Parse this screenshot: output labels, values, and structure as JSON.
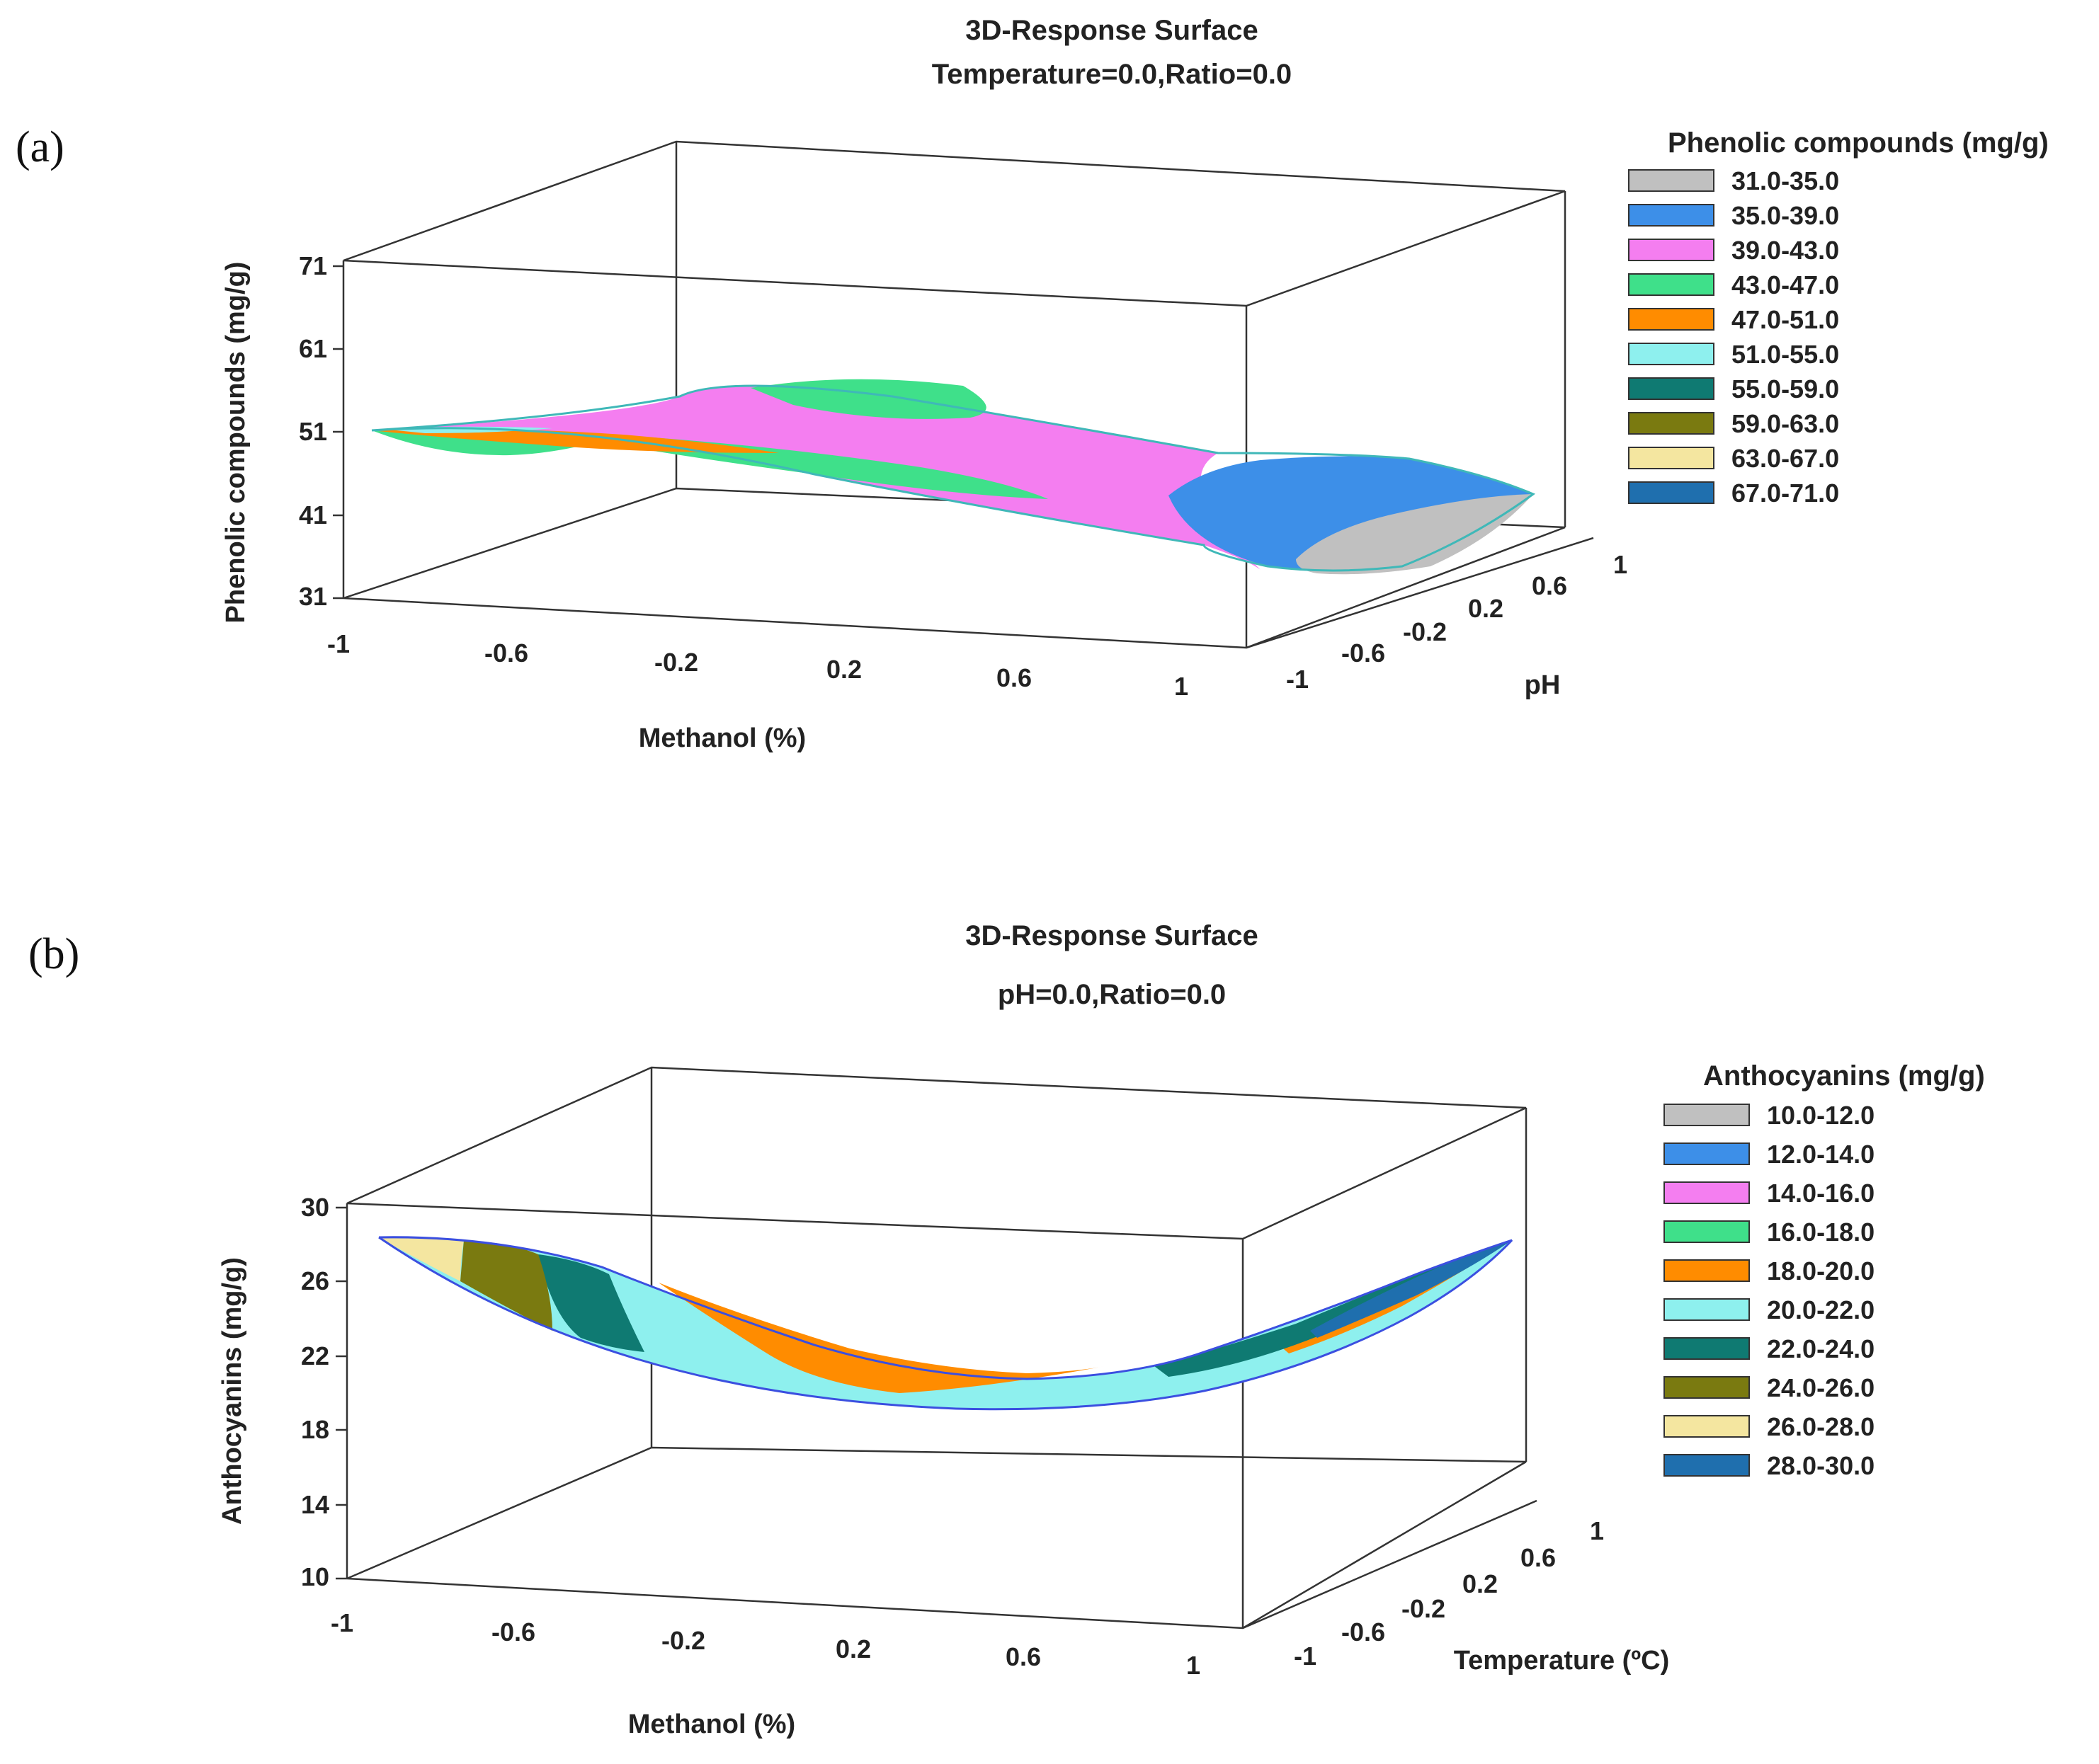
{
  "chart_data": [
    {
      "type": "surface3d",
      "panel_label": "(a)",
      "title": "3D-Response Surface",
      "subtitle": "Temperature=0.0,Ratio=0.0",
      "xlabel": "Methanol (%)",
      "ylabel": "pH",
      "zlabel": "Phenolic compounds (mg/g)",
      "x_ticks": [
        "-1",
        "-0.6",
        "-0.2",
        "0.2",
        "0.6",
        "1"
      ],
      "y_ticks": [
        "-1",
        "-0.6",
        "-0.2",
        "0.2",
        "0.6",
        "1"
      ],
      "z_ticks": [
        "31",
        "41",
        "51",
        "61",
        "71"
      ],
      "zlim": [
        31,
        71
      ],
      "legend_title": "Phenolic compounds (mg/g)",
      "legend": [
        {
          "label": "31.0-35.0",
          "color": "#c0c0c0"
        },
        {
          "label": "35.0-39.0",
          "color": "#3d8fe8"
        },
        {
          "label": "39.0-43.0",
          "color": "#f47ef0"
        },
        {
          "label": "43.0-47.0",
          "color": "#3fe08a"
        },
        {
          "label": "47.0-51.0",
          "color": "#ff8c00"
        },
        {
          "label": "51.0-55.0",
          "color": "#8ef0ee"
        },
        {
          "label": "55.0-59.0",
          "color": "#0f7a72"
        },
        {
          "label": "59.0-63.0",
          "color": "#7a7a10"
        },
        {
          "label": "63.0-67.0",
          "color": "#f4e6a0"
        },
        {
          "label": "67.0-71.0",
          "color": "#1f6fae"
        }
      ],
      "outline_color": "#3fb8b8"
    },
    {
      "type": "surface3d",
      "panel_label": "(b)",
      "title": "3D-Response Surface",
      "subtitle": "pH=0.0,Ratio=0.0",
      "xlabel": "Methanol (%)",
      "ylabel": "Temperature (ºC)",
      "zlabel": "Anthocyanins (mg/g)",
      "x_ticks": [
        "-1",
        "-0.6",
        "-0.2",
        "0.2",
        "0.6",
        "1"
      ],
      "y_ticks": [
        "-1",
        "-0.6",
        "-0.2",
        "0.2",
        "0.6",
        "1"
      ],
      "z_ticks": [
        "10",
        "14",
        "18",
        "22",
        "26",
        "30"
      ],
      "zlim": [
        10,
        30
      ],
      "legend_title": "Anthocyanins (mg/g)",
      "legend": [
        {
          "label": "10.0-12.0",
          "color": "#c0c0c0"
        },
        {
          "label": "12.0-14.0",
          "color": "#3d8fe8"
        },
        {
          "label": "14.0-16.0",
          "color": "#f47ef0"
        },
        {
          "label": "16.0-18.0",
          "color": "#3fe08a"
        },
        {
          "label": "18.0-20.0",
          "color": "#ff8c00"
        },
        {
          "label": "20.0-22.0",
          "color": "#8ef0ee"
        },
        {
          "label": "22.0-24.0",
          "color": "#0f7a72"
        },
        {
          "label": "24.0-26.0",
          "color": "#7a7a10"
        },
        {
          "label": "26.0-28.0",
          "color": "#f4e6a0"
        },
        {
          "label": "28.0-30.0",
          "color": "#1f6fae"
        }
      ],
      "outline_color": "#3b4fe0"
    }
  ]
}
